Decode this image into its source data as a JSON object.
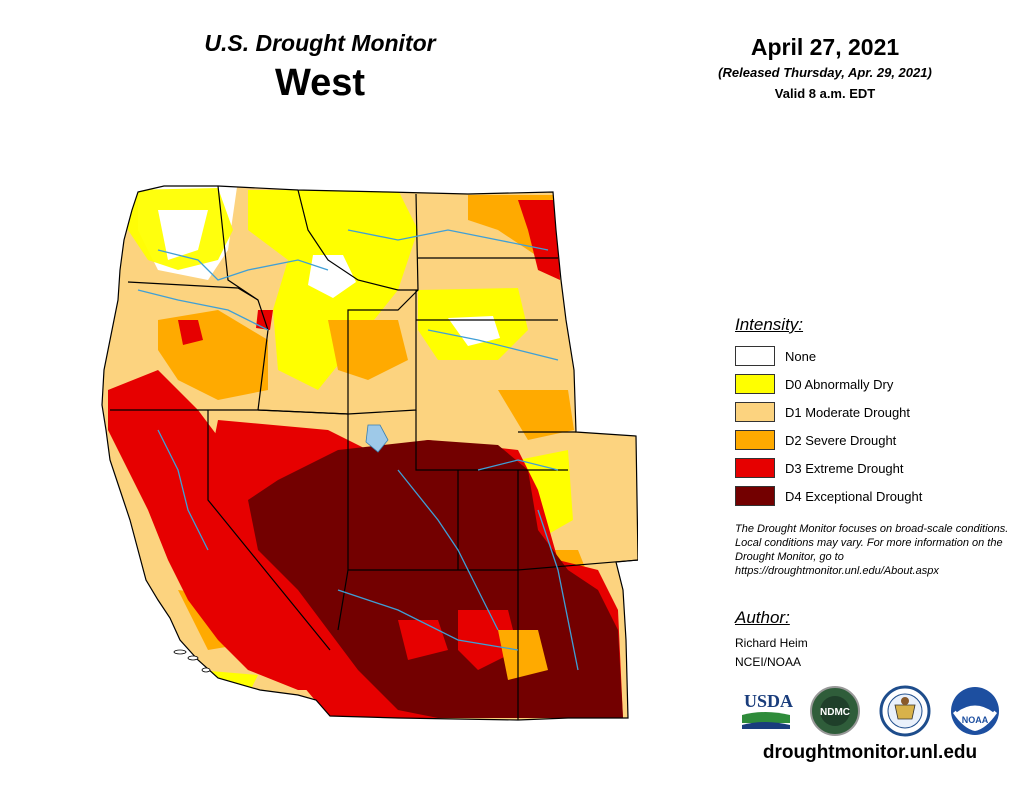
{
  "header": {
    "title": "U.S. Drought Monitor",
    "region": "West",
    "date": "April 27, 2021",
    "released": "(Released Thursday, Apr. 29, 2021)",
    "valid": "Valid 8 a.m. EDT"
  },
  "legend": {
    "title": "Intensity:",
    "items": [
      {
        "label": "None",
        "color": "#ffffff"
      },
      {
        "label": "D0 Abnormally Dry",
        "color": "#ffff00"
      },
      {
        "label": "D1 Moderate Drought",
        "color": "#fcd37f"
      },
      {
        "label": "D2 Severe Drought",
        "color": "#ffaa00"
      },
      {
        "label": "D3 Extreme Drought",
        "color": "#e60000"
      },
      {
        "label": "D4 Exceptional Drought",
        "color": "#730000"
      }
    ]
  },
  "note": "The Drought Monitor focuses on broad-scale conditions. Local conditions may vary. For more information on the Drought Monitor, go to https://droughtmonitor.unl.edu/About.aspx",
  "author": {
    "title": "Author:",
    "name": "Richard Heim",
    "org": "NCEI/NOAA"
  },
  "logos": {
    "usda": "USDA",
    "ndmc": "NDMC",
    "noaa": "NOAA"
  },
  "url": "droughtmonitor.unl.edu"
}
